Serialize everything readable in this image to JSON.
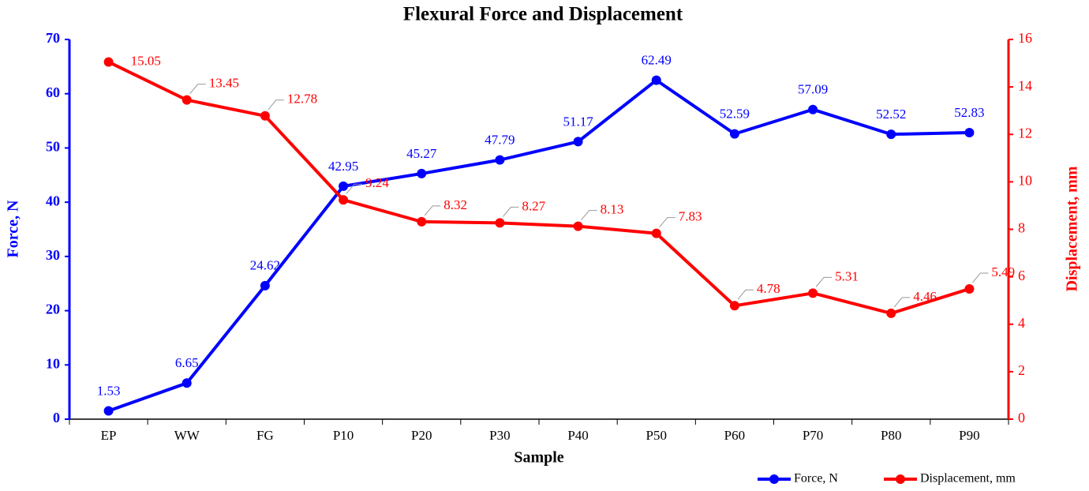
{
  "chart_data": {
    "type": "line",
    "title": "Flexural Force and Displacement",
    "x_label": "Sample",
    "y_label": "Force, N",
    "y2_label": "Displacement, mm",
    "categories": [
      "EP",
      "WW",
      "FG",
      "P10",
      "P20",
      "P30",
      "P40",
      "P50",
      "P60",
      "P70",
      "P80",
      "P90"
    ],
    "series": [
      {
        "name": "Force, N",
        "color": "#0000ff",
        "values": [
          1.53,
          6.65,
          24.62,
          42.95,
          45.27,
          47.79,
          51.17,
          62.49,
          52.59,
          57.09,
          52.52,
          52.83
        ]
      },
      {
        "name": "Displacement, mm",
        "color": "#ff0000",
        "axis": "y2",
        "values": [
          15.05,
          13.45,
          12.78,
          9.24,
          8.32,
          8.27,
          8.13,
          7.83,
          4.78,
          5.31,
          4.46,
          5.49
        ]
      }
    ],
    "ylim": [
      0,
      70
    ],
    "yticks": [
      0,
      10,
      20,
      30,
      40,
      50,
      60,
      70
    ],
    "y2lim": [
      0,
      16
    ],
    "y2ticks": [
      0,
      2,
      4,
      6,
      8,
      10,
      12,
      14,
      16
    ],
    "legend": "bottom-right"
  }
}
